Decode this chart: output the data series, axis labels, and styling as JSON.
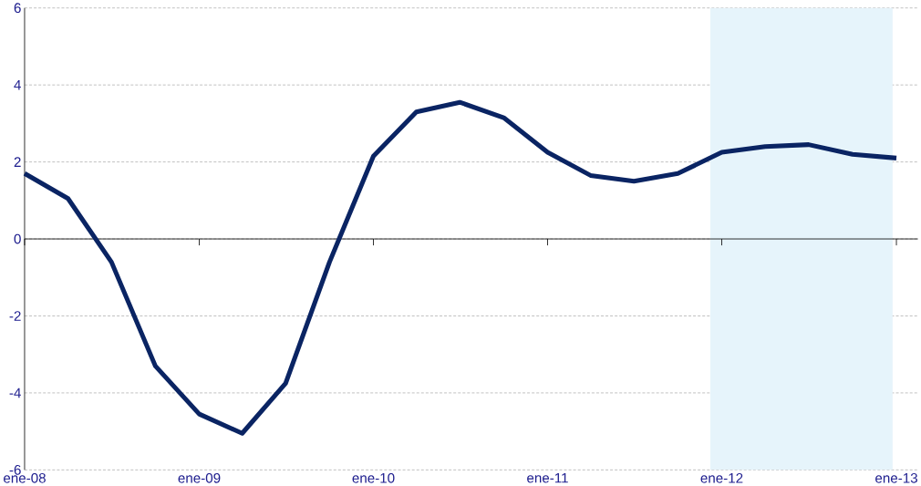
{
  "chart_data": {
    "type": "line",
    "x": [
      "2008-01",
      "2008-04",
      "2008-07",
      "2008-10",
      "2009-01",
      "2009-04",
      "2009-07",
      "2009-10",
      "2010-01",
      "2010-04",
      "2010-07",
      "2010-10",
      "2011-01",
      "2011-04",
      "2011-07",
      "2011-10",
      "2012-01",
      "2012-04",
      "2012-07",
      "2012-10",
      "2013-01"
    ],
    "series": [
      {
        "color": "#0a2463",
        "values": [
          1.7,
          1.05,
          -0.6,
          -3.3,
          -4.55,
          -5.05,
          -3.75,
          -0.6,
          2.15,
          3.3,
          3.55,
          3.15,
          2.25,
          1.65,
          1.5,
          1.7,
          2.25,
          2.4,
          2.45,
          2.2,
          2.1
        ]
      }
    ],
    "xlim": [
      "2008-01",
      "2013-02-15"
    ],
    "xticks": [
      {
        "value": "2008-01",
        "label": "ene-08"
      },
      {
        "value": "2009-01",
        "label": "ene-09"
      },
      {
        "value": "2010-01",
        "label": "ene-10"
      },
      {
        "value": "2011-01",
        "label": "ene-11"
      },
      {
        "value": "2012-01",
        "label": "ene-12"
      },
      {
        "value": "2013-01",
        "label": "ene-13"
      }
    ],
    "ylim": [
      -6,
      6
    ],
    "yticks": [
      -6,
      -4,
      -2,
      0,
      2,
      4,
      6
    ],
    "grid": "y",
    "line_style": "solid",
    "marker": "none",
    "ref_lines": [
      {
        "axis": "y",
        "value": 0,
        "color": "#000000"
      }
    ],
    "bands": [
      {
        "axis": "x",
        "from": "2011-12-08",
        "to": "2012-12-24",
        "color": "#e6f4fb"
      }
    ]
  }
}
